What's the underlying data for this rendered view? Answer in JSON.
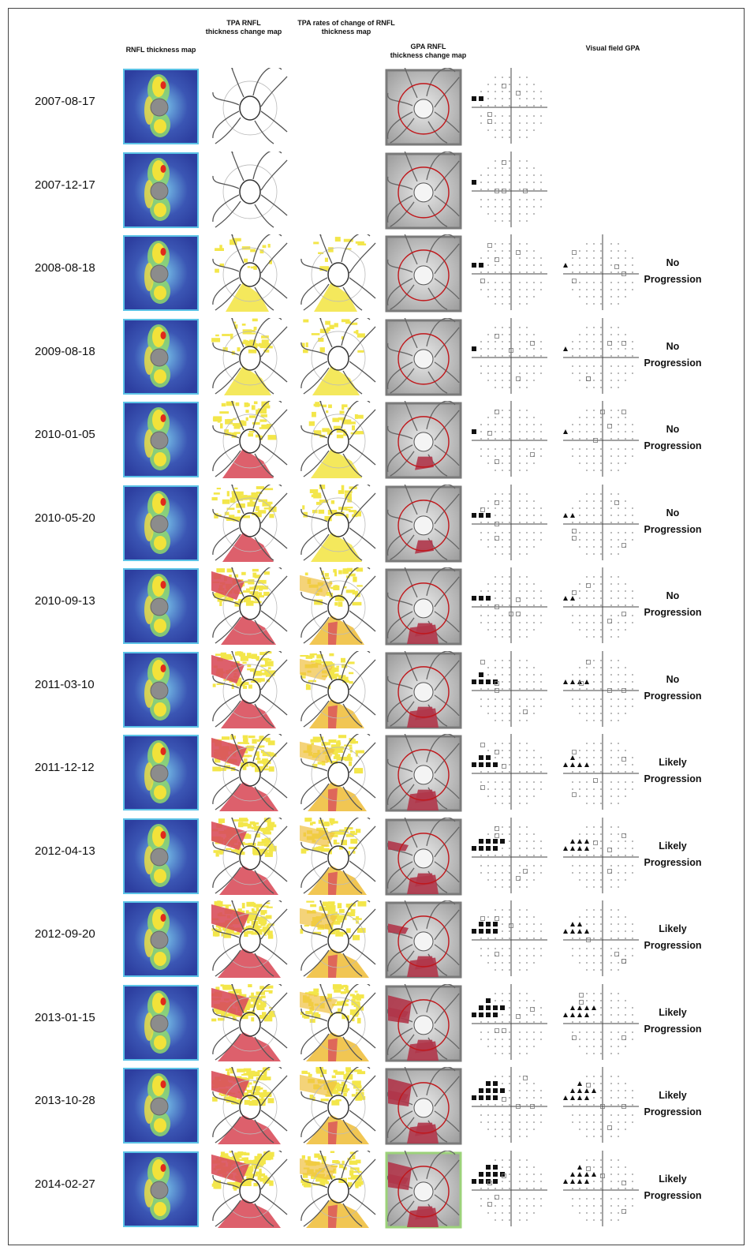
{
  "headers": {
    "rnfl_thickness_map": "RNFL thickness map",
    "tpa_change_map_line1": "TPA RNFL",
    "tpa_change_map_line2": "thickness change map",
    "tpa_rates_line1": "TPA rates of change of  RNFL",
    "tpa_rates_line2": "thickness map",
    "gpa_change_map_line1": "GPA  RNFL",
    "gpa_change_map_line2": "thickness change map",
    "visual_field_gpa": "Visual field GPA"
  },
  "colors": {
    "thickness_blue": "#3b56b4",
    "thickness_yellow": "#f2e23a",
    "thickness_red": "#e02a1c",
    "change_yellow": "#f3e64a",
    "change_red": "#d94f5c",
    "gpa_circle": "#c0171b",
    "gpa_border": "#7a7a7a",
    "final_border": "#9cd27a",
    "thickness_border": "#5bc2e6"
  },
  "visits": [
    {
      "date": "2007-08-17",
      "status1": "",
      "status2": "",
      "tpa_level": 0,
      "tpa_rates": false,
      "vf_squares": 2,
      "gpa_level": 0
    },
    {
      "date": "2007-12-17",
      "status1": "",
      "status2": "",
      "tpa_level": 0,
      "tpa_rates": false,
      "vf_squares": 1,
      "gpa_level": 0
    },
    {
      "date": "2008-08-18",
      "status1": "No",
      "status2": "Progression",
      "tpa_level": 1,
      "tpa_rates": true,
      "vf_squares": 2,
      "gpa_level": 0
    },
    {
      "date": "2009-08-18",
      "status1": "No",
      "status2": "Progression",
      "tpa_level": 2,
      "tpa_rates": true,
      "vf_squares": 1,
      "gpa_level": 0
    },
    {
      "date": "2010-01-05",
      "status1": "No",
      "status2": "Progression",
      "tpa_level": 3,
      "tpa_rates": true,
      "vf_squares": 1,
      "gpa_level": 1
    },
    {
      "date": "2010-05-20",
      "status1": "No",
      "status2": "Progression",
      "tpa_level": 3,
      "tpa_rates": true,
      "vf_squares": 3,
      "gpa_level": 1
    },
    {
      "date": "2010-09-13",
      "status1": "No",
      "status2": "Progression",
      "tpa_level": 4,
      "tpa_rates": true,
      "vf_squares": 3,
      "gpa_level": 2
    },
    {
      "date": "2011-03-10",
      "status1": "No",
      "status2": "Progression",
      "tpa_level": 4,
      "tpa_rates": true,
      "vf_squares": 5,
      "gpa_level": 2
    },
    {
      "date": "2011-12-12",
      "status1": "Likely",
      "status2": "Progression",
      "tpa_level": 5,
      "tpa_rates": true,
      "vf_squares": 6,
      "gpa_level": 2
    },
    {
      "date": "2012-04-13",
      "status1": "Likely",
      "status2": "Progression",
      "tpa_level": 5,
      "tpa_rates": true,
      "vf_squares": 8,
      "gpa_level": 3
    },
    {
      "date": "2012-09-20",
      "status1": "Likely",
      "status2": "Progression",
      "tpa_level": 6,
      "tpa_rates": true,
      "vf_squares": 7,
      "gpa_level": 3
    },
    {
      "date": "2013-01-15",
      "status1": "Likely",
      "status2": "Progression",
      "tpa_level": 6,
      "tpa_rates": true,
      "vf_squares": 9,
      "gpa_level": 4
    },
    {
      "date": "2013-10-28",
      "status1": "Likely",
      "status2": "Progression",
      "tpa_level": 6,
      "tpa_rates": true,
      "vf_squares": 10,
      "gpa_level": 4
    },
    {
      "date": "2014-02-27",
      "status1": "Likely",
      "status2": "Progression",
      "tpa_level": 6,
      "tpa_rates": true,
      "vf_squares": 10,
      "gpa_level": 4,
      "final": true
    }
  ]
}
